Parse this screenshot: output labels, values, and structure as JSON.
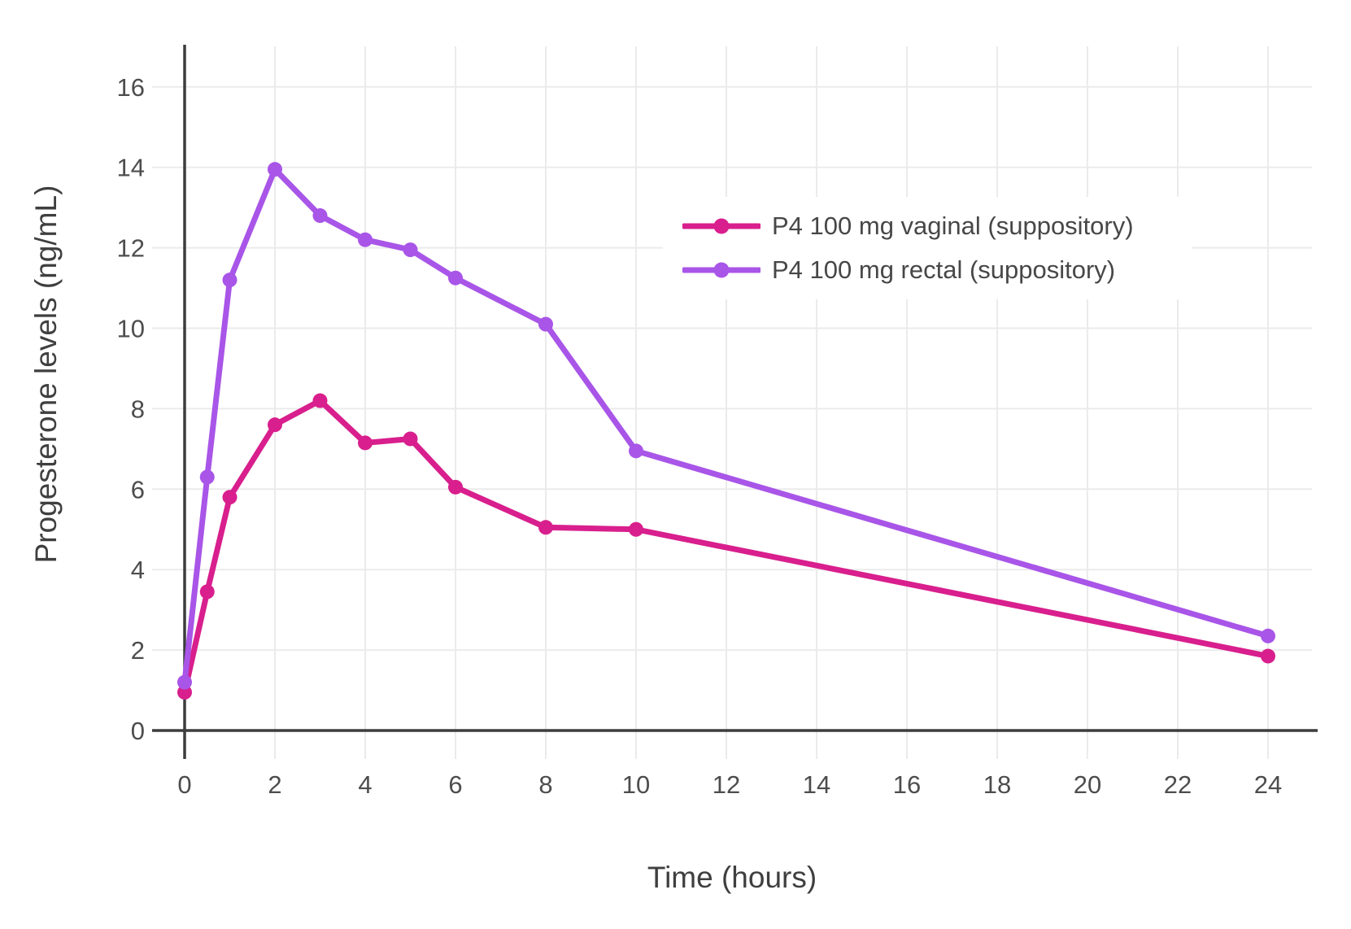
{
  "chart_data": {
    "type": "line",
    "title": "",
    "xlabel": "Time (hours)",
    "ylabel": "Progesterone levels (ng/mL)",
    "x": [
      0,
      0.5,
      1,
      2,
      3,
      4,
      5,
      6,
      8,
      10,
      24
    ],
    "series": [
      {
        "name": "P4 100 mg vaginal (suppository)",
        "color": "#d81f8d",
        "values": [
          0.95,
          3.45,
          5.8,
          7.6,
          8.2,
          7.15,
          7.25,
          6.05,
          5.05,
          5.0,
          1.85
        ]
      },
      {
        "name": "P4 100 mg rectal (suppository)",
        "color": "#a855e8",
        "values": [
          1.2,
          6.3,
          11.2,
          13.95,
          12.8,
          12.2,
          11.95,
          11.25,
          10.1,
          6.95,
          2.35
        ]
      }
    ],
    "x_ticks": [
      0,
      2,
      4,
      6,
      8,
      10,
      12,
      14,
      16,
      18,
      20,
      22,
      24
    ],
    "y_ticks": [
      0,
      2,
      4,
      6,
      8,
      10,
      12,
      14,
      16
    ],
    "xlim": [
      0,
      25
    ],
    "ylim": [
      0,
      17
    ],
    "grid": true,
    "legend_position": "inside-top-right",
    "marker": "circle"
  },
  "style": {
    "background": "#ffffff",
    "axis_color": "#3d3d3d",
    "grid_color": "#ebebeb",
    "tick_label_color": "#4d4d4d",
    "axis_title_color": "#3f3f3f",
    "legend_text_color": "#474747"
  }
}
